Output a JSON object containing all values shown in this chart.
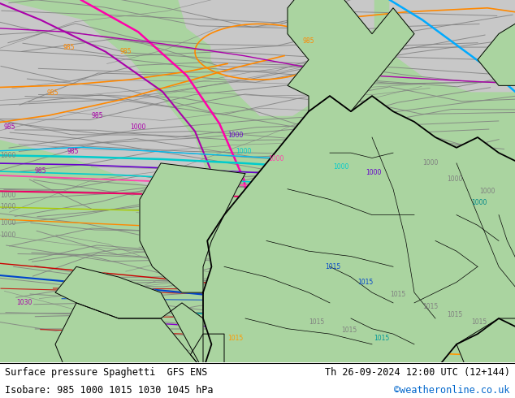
{
  "title_left": "Surface pressure Spaghetti  GFS ENS",
  "title_right": "Th 26-09-2024 12:00 UTC (12+144)",
  "subtitle_left": "Isobare: 985 1000 1015 1030 1045 hPa",
  "subtitle_right": "©weatheronline.co.uk",
  "subtitle_right_color": "#0066cc",
  "background_color": "#c8c8c8",
  "land_color": "#aad4a0",
  "fig_width": 6.34,
  "fig_height": 4.9,
  "dpi": 100,
  "gray_line_color": "#808080",
  "border_color": "#000000",
  "colors": {
    "985_orange": "#ff8800",
    "985_purple": "#aa00aa",
    "985_magenta": "#ff00aa",
    "1000_cyan": "#00cccc",
    "1000_blue_light": "#00aaff",
    "1000_purple2": "#6600cc",
    "1000_pink": "#ff44aa",
    "1000_yellow": "#aacc00",
    "1000_teal": "#008888",
    "1015_red": "#cc0000",
    "1015_blue": "#0044cc",
    "1015_teal2": "#009999",
    "1015_purple3": "#8800cc",
    "1015_orange2": "#ff9900",
    "1030_orange3": "#ff6600"
  }
}
